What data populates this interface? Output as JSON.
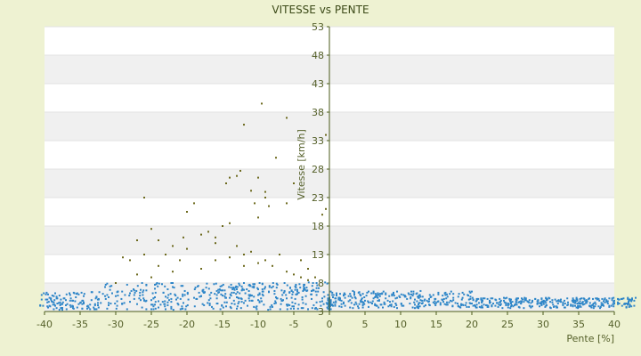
{
  "chart_data": {
    "type": "scatter",
    "title": "VITESSE vs PENTE",
    "xlabel": "Pente [%]",
    "ylabel": "Vitesse [km/h]",
    "xlim": [
      -40,
      40
    ],
    "ylim": [
      3,
      53
    ],
    "xticks": [
      -40,
      -35,
      -30,
      -25,
      -20,
      -15,
      -10,
      -5,
      0,
      5,
      10,
      15,
      20,
      25,
      30,
      35,
      40
    ],
    "yticks": [
      3,
      8,
      13,
      18,
      23,
      28,
      33,
      38,
      43,
      48,
      53
    ],
    "grid": "horizontal alternating bands",
    "colors": {
      "blue": "#2f86c8",
      "olive": "#6d6a1e",
      "axis": "#4a5a1a",
      "band": "#f0f0f0"
    },
    "series": [
      {
        "color": "olive",
        "points": [
          [
            -9.5,
            39.5
          ],
          [
            -12,
            35.8
          ],
          [
            -6,
            37
          ],
          [
            -10,
            26.5
          ],
          [
            -14,
            26.5
          ],
          [
            -12.5,
            27.7
          ],
          [
            -13,
            26.8
          ],
          [
            -11,
            24.2
          ],
          [
            -9,
            23
          ],
          [
            -8.5,
            21.5
          ],
          [
            -7.5,
            30
          ],
          [
            -10.5,
            22
          ],
          [
            -14.5,
            25.5
          ],
          [
            -6,
            22
          ],
          [
            -5,
            25.5
          ],
          [
            -0.5,
            21
          ],
          [
            -1,
            20
          ],
          [
            -0.5,
            34
          ],
          [
            -26,
            23
          ],
          [
            -19,
            22
          ],
          [
            -20,
            20.5
          ],
          [
            -29,
            12.5
          ],
          [
            -28,
            12
          ],
          [
            -27,
            15.5
          ],
          [
            -26,
            13
          ],
          [
            -24,
            15.5
          ],
          [
            -23,
            13
          ],
          [
            -22,
            14.5
          ],
          [
            -21,
            12
          ],
          [
            -18,
            16.5
          ],
          [
            -17,
            17
          ],
          [
            -16,
            15
          ],
          [
            -15,
            18
          ],
          [
            -14,
            12.5
          ],
          [
            -13,
            14.5
          ],
          [
            -12,
            11
          ],
          [
            -11,
            13.5
          ],
          [
            -10,
            11.5
          ],
          [
            -9,
            12
          ],
          [
            -8,
            11
          ],
          [
            -7,
            13
          ],
          [
            -6,
            10
          ],
          [
            -5,
            9.5
          ],
          [
            -4,
            9
          ],
          [
            -3,
            10.5
          ],
          [
            -2,
            9
          ],
          [
            -25,
            17.5
          ],
          [
            -20.5,
            16
          ],
          [
            -16,
            16
          ],
          [
            -14,
            18.5
          ],
          [
            -10,
            19.5
          ],
          [
            -9,
            24
          ],
          [
            -3,
            8.5
          ],
          [
            -4,
            12
          ],
          [
            -24,
            11
          ],
          [
            -22,
            10
          ],
          [
            -18,
            10.5
          ],
          [
            -16,
            12
          ],
          [
            -20,
            14
          ],
          [
            -12,
            13
          ],
          [
            -27,
            9.5
          ],
          [
            -30,
            8
          ],
          [
            -25,
            9
          ]
        ]
      },
      {
        "color": "blue",
        "points": []
      }
    ]
  }
}
